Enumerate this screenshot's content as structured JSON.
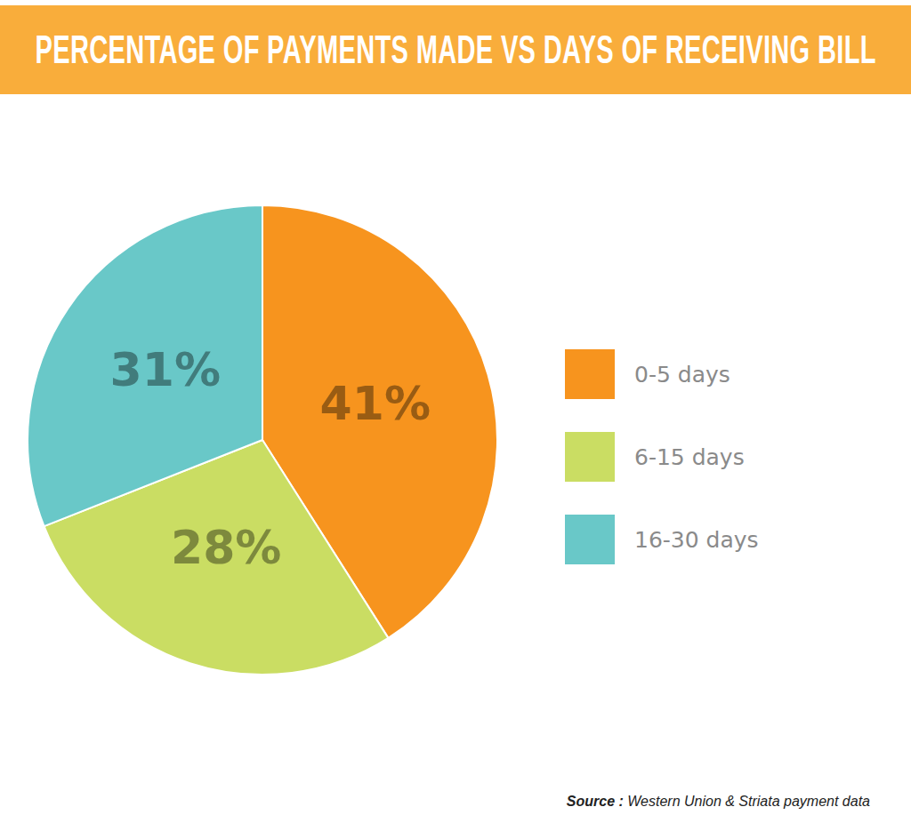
{
  "chart_data": {
    "type": "pie",
    "title": "PERCENTAGE OF PAYMENTS MADE VS DAYS OF RECEIVING BILL",
    "categories": [
      "0-5 days",
      "6-15 days",
      "16-30 days"
    ],
    "values": [
      41,
      28,
      31
    ],
    "value_labels": [
      "41%",
      "28%",
      "31%"
    ],
    "colors": [
      "#f7941e",
      "#cadd63",
      "#69c8c8"
    ],
    "data_labels": true,
    "legend": "right",
    "source": {
      "prefix": "Source :",
      "text": "Western Union & Striata payment data"
    }
  }
}
